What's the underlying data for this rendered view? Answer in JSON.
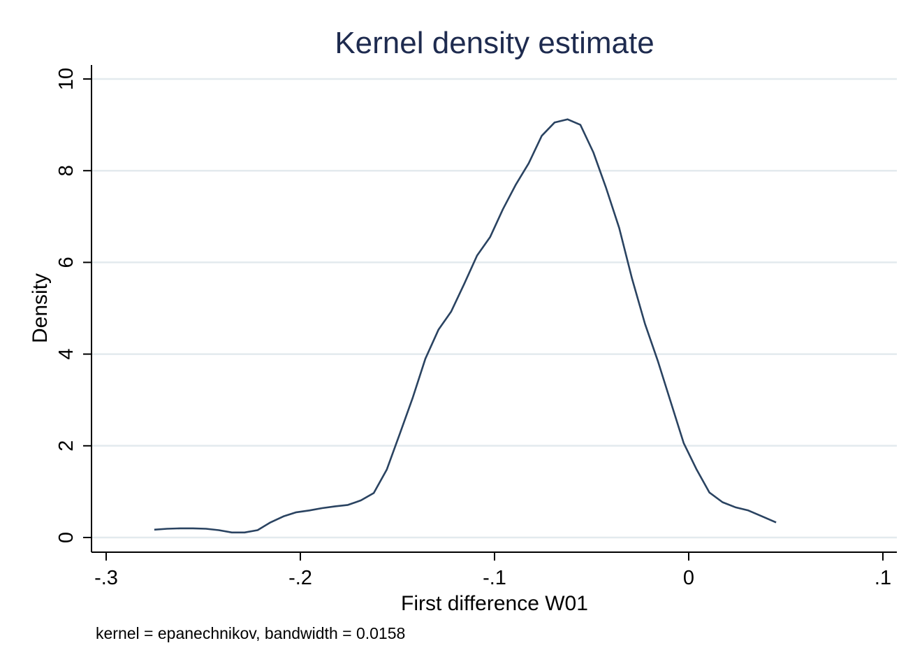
{
  "chart_data": {
    "type": "line",
    "title": "Kernel density estimate",
    "xlabel": "First difference W01",
    "ylabel": "Density",
    "note": "kernel = epanechnikov, bandwidth = 0.0158",
    "xlim": [
      -0.3,
      0.1
    ],
    "ylim": [
      0,
      10
    ],
    "x_ticks": [
      -0.3,
      -0.2,
      -0.1,
      0,
      0.1
    ],
    "x_tick_labels": [
      "-.3",
      "-.2",
      "-.1",
      "0",
      ".1"
    ],
    "y_ticks": [
      0,
      2,
      4,
      6,
      8,
      10
    ],
    "y_tick_labels": [
      "0",
      "2",
      "4",
      "6",
      "8",
      "10"
    ],
    "grid": "horizontal",
    "legend": "none",
    "colors": {
      "line": "#2a4361",
      "title": "#1e2b4f",
      "grid": "#e3eaee",
      "axis": "#000000",
      "text": "#000000"
    },
    "series": [
      {
        "x": [
          -0.2752,
          -0.2686,
          -0.2619,
          -0.2553,
          -0.2486,
          -0.242,
          -0.2353,
          -0.2287,
          -0.222,
          -0.2154,
          -0.2087,
          -0.2021,
          -0.1954,
          -0.1888,
          -0.1821,
          -0.1755,
          -0.1688,
          -0.1622,
          -0.1555,
          -0.1489,
          -0.1422,
          -0.1356,
          -0.1289,
          -0.1223,
          -0.1156,
          -0.109,
          -0.1023,
          -0.0957,
          -0.089,
          -0.0824,
          -0.0757,
          -0.0691,
          -0.0624,
          -0.0558,
          -0.0491,
          -0.0425,
          -0.0358,
          -0.0292,
          -0.0225,
          -0.0159,
          -0.0092,
          -0.0026,
          0.0041,
          0.0107,
          0.0174,
          0.024,
          0.0307,
          0.0373,
          0.045
        ],
        "y": [
          0.17,
          0.19,
          0.2,
          0.2,
          0.19,
          0.16,
          0.11,
          0.11,
          0.16,
          0.33,
          0.46,
          0.55,
          0.59,
          0.64,
          0.68,
          0.71,
          0.81,
          0.97,
          1.48,
          2.25,
          3.04,
          3.9,
          4.53,
          4.93,
          5.53,
          6.15,
          6.55,
          7.16,
          7.7,
          8.16,
          8.76,
          9.05,
          9.12,
          9.0,
          8.4,
          7.62,
          6.75,
          5.65,
          4.66,
          3.85,
          2.95,
          2.06,
          1.48,
          0.98,
          0.77,
          0.66,
          0.59,
          0.47,
          0.33
        ]
      }
    ]
  }
}
